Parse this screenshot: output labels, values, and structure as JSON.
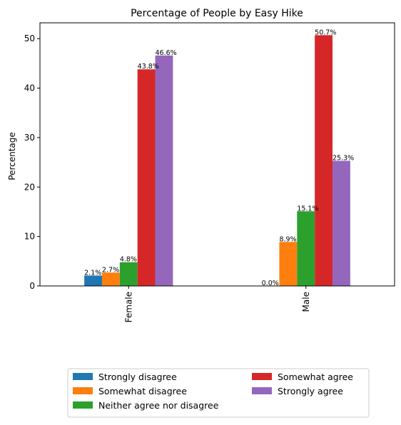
{
  "chart_data": {
    "type": "bar",
    "title": "Percentage of People by Easy Hike",
    "xlabel": "",
    "ylabel": "Percentage",
    "categories": [
      "Female",
      "Male"
    ],
    "ylim": [
      0,
      53.2
    ],
    "yticks": [
      0,
      10,
      20,
      30,
      40,
      50
    ],
    "grid": false,
    "legend_position": "bottom-center",
    "series": [
      {
        "name": "Strongly disagree",
        "color": "#1f77b4",
        "values": [
          2.1,
          0.0
        ],
        "labels": [
          "2.1%",
          "0.0%"
        ]
      },
      {
        "name": "Somewhat disagree",
        "color": "#ff7f0e",
        "values": [
          2.7,
          8.9
        ],
        "labels": [
          "2.7%",
          "8.9%"
        ]
      },
      {
        "name": "Neither agree nor disagree",
        "color": "#2ca02c",
        "values": [
          4.8,
          15.1
        ],
        "labels": [
          "4.8%",
          "15.1%"
        ]
      },
      {
        "name": "Somewhat agree",
        "color": "#d62728",
        "values": [
          43.8,
          50.7
        ],
        "labels": [
          "43.8%",
          "50.7%"
        ]
      },
      {
        "name": "Strongly agree",
        "color": "#9467bd",
        "values": [
          46.6,
          25.3
        ],
        "labels": [
          "46.6%",
          "25.3%"
        ]
      }
    ]
  }
}
